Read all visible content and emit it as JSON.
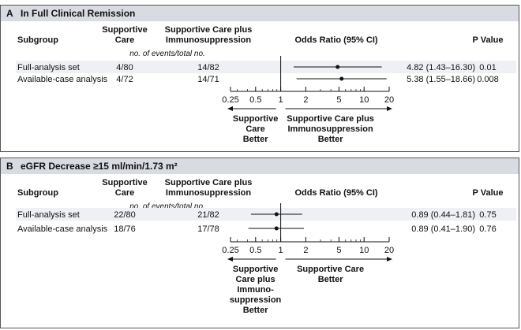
{
  "panels": [
    {
      "letter": "A",
      "title": "In Full Clinical Remission",
      "header": {
        "subgroup": "Subgroup",
        "col1": [
          "Supportive",
          "Care"
        ],
        "col2": [
          "Supportive Care plus",
          "Immunosuppression"
        ],
        "odds": "Odds Ratio (95% CI)",
        "pvalue": "P Value",
        "events_note": "no. of events/total no."
      },
      "favor_left": [
        "Supportive",
        "Care",
        "Better"
      ],
      "favor_right": [
        "Supportive Care plus",
        "Immunosuppression",
        "Better"
      ]
    },
    {
      "letter": "B",
      "title": "eGFR Decrease ≥15 ml/min/1.73 m²",
      "header": {
        "subgroup": "Subgroup",
        "col1": [
          "Supportive",
          "Care"
        ],
        "col2": [
          "Supportive Care plus",
          "Immunosuppression"
        ],
        "odds": "Odds Ratio (95% CI)",
        "pvalue": "P Value",
        "events_note": "no. of events/total no."
      },
      "favor_left": [
        "Supportive",
        "Care plus",
        "Immuno-",
        "suppression",
        "Better"
      ],
      "favor_right": [
        "Supportive Care",
        "Better"
      ]
    }
  ],
  "chart_data": [
    {
      "type": "forest",
      "title": "In Full Clinical Remission",
      "xlabel": "Odds Ratio (95% CI)",
      "xscale": "log",
      "xlim": [
        0.25,
        20
      ],
      "xticks": [
        "0.25",
        "0.5",
        "1",
        "2",
        "5",
        "10",
        "20"
      ],
      "reference": 1,
      "rows": [
        {
          "subgroup": "Full-analysis set",
          "supportive": "4/80",
          "immuno": "14/82",
          "or": 4.82,
          "lo": 1.43,
          "hi": 16.3,
          "or_text": "4.82 (1.43–16.30)",
          "p": "0.01"
        },
        {
          "subgroup": "Available-case analysis",
          "supportive": "4/72",
          "immuno": "14/71",
          "or": 5.38,
          "lo": 1.55,
          "hi": 18.66,
          "or_text": "5.38 (1.55–18.66)",
          "p": "0.008"
        }
      ]
    },
    {
      "type": "forest",
      "title": "eGFR Decrease ≥15 ml/min/1.73 m²",
      "xlabel": "Odds Ratio (95% CI)",
      "xscale": "log",
      "xlim": [
        0.25,
        20
      ],
      "xticks": [
        "0.25",
        "0.5",
        "1",
        "2",
        "5",
        "10",
        "20"
      ],
      "reference": 1,
      "rows": [
        {
          "subgroup": "Full-analysis set",
          "supportive": "22/80",
          "immuno": "21/82",
          "or": 0.89,
          "lo": 0.44,
          "hi": 1.81,
          "or_text": "0.89 (0.44–1.81)",
          "p": "0.75"
        },
        {
          "subgroup": "Available-case analysis",
          "supportive": "18/76",
          "immuno": "17/78",
          "or": 0.89,
          "lo": 0.41,
          "hi": 1.9,
          "or_text": "0.89 (0.41–1.90)",
          "p": "0.76"
        }
      ]
    }
  ]
}
